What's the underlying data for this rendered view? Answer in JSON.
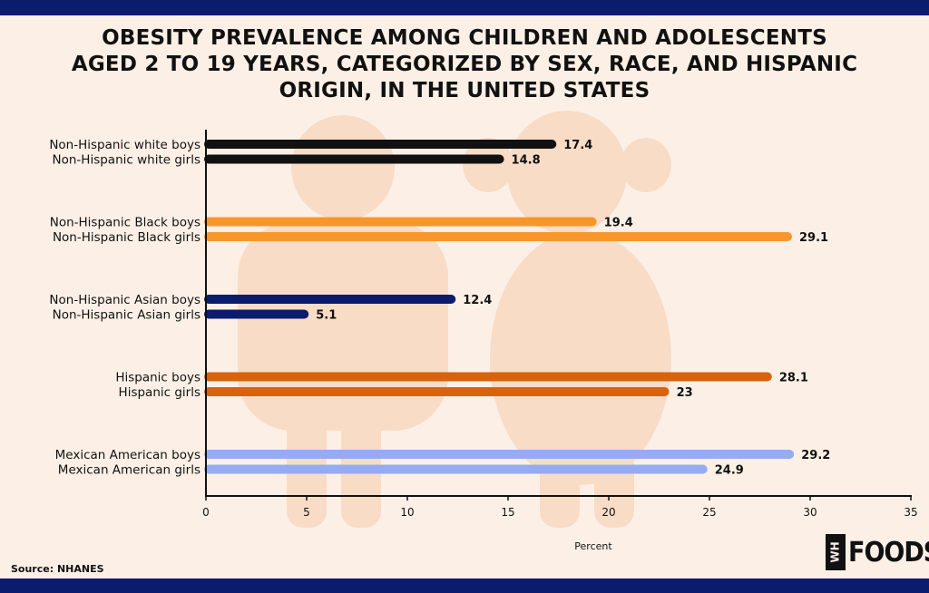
{
  "title_lines": [
    "OBESITY PREVALENCE AMONG CHILDREN AND ADOLESCENTS",
    "AGED 2 TO 19 YEARS, CATEGORIZED BY SEX, RACE, AND HISPANIC",
    "ORIGIN, IN THE UNITED STATES"
  ],
  "source": "Source: NHANES",
  "logo": {
    "box_text": "WH",
    "text": "FOODS"
  },
  "colors": {
    "band": "#0b1b6e",
    "background": "#fcf0e6",
    "silhouette": "#f9dcc6"
  },
  "chart_data": {
    "type": "bar",
    "orientation": "horizontal",
    "xlabel": "Percent",
    "xlim": [
      0,
      35
    ],
    "xticks": [
      0,
      5,
      10,
      15,
      20,
      25,
      30,
      35
    ],
    "grid": false,
    "groups": [
      {
        "color": "#111111",
        "bars": [
          {
            "label": "Non-Hispanic white boys",
            "value": 17.4
          },
          {
            "label": "Non-Hispanic white girls",
            "value": 14.8
          }
        ]
      },
      {
        "color": "#f7962a",
        "bars": [
          {
            "label": "Non-Hispanic Black boys",
            "value": 19.4
          },
          {
            "label": "Non-Hispanic Black girls",
            "value": 29.1
          }
        ]
      },
      {
        "color": "#0b1b6e",
        "bars": [
          {
            "label": "Non-Hispanic Asian boys",
            "value": 12.4
          },
          {
            "label": "Non-Hispanic Asian girls",
            "value": 5.1
          }
        ]
      },
      {
        "color": "#d9620a",
        "bars": [
          {
            "label": "Hispanic boys",
            "value": 28.1
          },
          {
            "label": "Hispanic girls",
            "value": 23
          }
        ]
      },
      {
        "color": "#95abf2",
        "bars": [
          {
            "label": "Mexican American boys",
            "value": 29.2
          },
          {
            "label": "Mexican American girls",
            "value": 24.9
          }
        ]
      }
    ]
  }
}
